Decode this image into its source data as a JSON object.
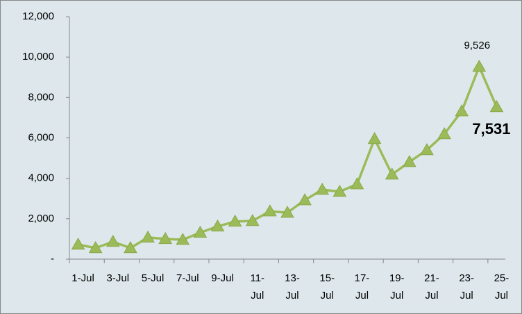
{
  "chart_data": {
    "type": "line",
    "categories": [
      "1-Jul",
      null,
      "3-Jul",
      null,
      "5-Jul",
      null,
      "7-Jul",
      null,
      "9-Jul",
      null,
      "11-Jul",
      null,
      "13-Jul",
      null,
      "15-Jul",
      null,
      "17-Jul",
      null,
      "19-Jul",
      null,
      "21-Jul",
      null,
      "23-Jul",
      null,
      "25-Jul"
    ],
    "series": [
      {
        "color": "#9bbb59",
        "values": [
          720,
          550,
          860,
          550,
          1070,
          1000,
          960,
          1310,
          1620,
          1860,
          1890,
          2370,
          2300,
          2920,
          3440,
          3340,
          3710,
          5950,
          4190,
          4810,
          5400,
          6190,
          7320,
          9526,
          7531
        ],
        "value_labels": [
          null,
          null,
          null,
          null,
          null,
          null,
          null,
          null,
          null,
          null,
          null,
          null,
          null,
          null,
          null,
          null,
          null,
          null,
          null,
          null,
          null,
          null,
          null,
          "9,526",
          "7,531"
        ],
        "value_label_colors": [
          null,
          null,
          null,
          null,
          null,
          null,
          null,
          null,
          null,
          null,
          null,
          null,
          null,
          null,
          null,
          null,
          null,
          null,
          null,
          null,
          null,
          null,
          null,
          "#000000",
          "#ff0000"
        ]
      }
    ],
    "ylim": [
      0,
      12000
    ],
    "yticks": [
      {
        "value": 0,
        "label": "-"
      },
      {
        "value": 2000,
        "label": "2,000"
      },
      {
        "value": 4000,
        "label": "4,000"
      },
      {
        "value": 6000,
        "label": "6,000"
      },
      {
        "value": 8000,
        "label": "8,000"
      },
      {
        "value": 10000,
        "label": "10,000"
      },
      {
        "value": 12000,
        "label": "12,000"
      }
    ],
    "grid": false
  }
}
